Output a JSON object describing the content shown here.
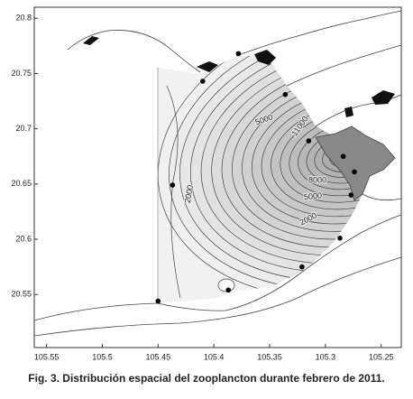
{
  "chart_data": {
    "type": "scatter",
    "title": "Fig. 3. Distribución espacial del zooplancton durante febrero de 2011.",
    "xlim": [
      105.561,
      105.232
    ],
    "ylim": [
      20.502,
      20.81
    ],
    "xticks": [
      105.55,
      105.5,
      105.45,
      105.4,
      105.35,
      105.3,
      105.25
    ],
    "yticks": [
      20.55,
      20.6,
      20.65,
      20.7,
      20.75,
      20.8
    ],
    "x": [
      105.41,
      105.378,
      105.336,
      105.315,
      105.284,
      105.274,
      105.277,
      105.287,
      105.321,
      105.387,
      105.45,
      105.437
    ],
    "values": [
      20.743,
      20.768,
      20.731,
      20.689,
      20.675,
      20.661,
      20.64,
      20.601,
      20.575,
      20.554,
      20.544,
      20.649
    ],
    "color": "#000000",
    "contour_labels": [
      5000,
      11000,
      8000,
      5000,
      2000,
      2000
    ]
  }
}
